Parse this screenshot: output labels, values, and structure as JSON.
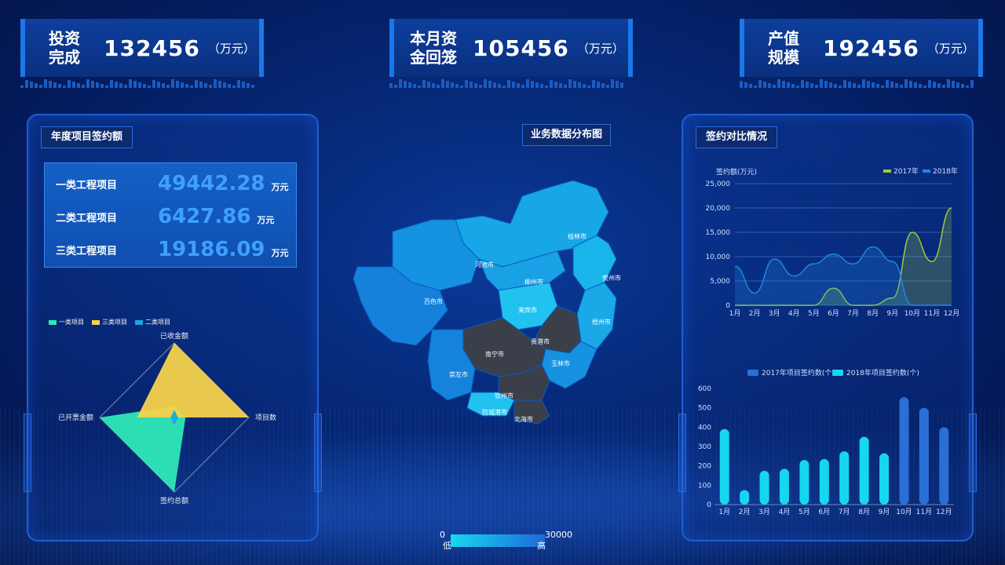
{
  "kpis": [
    {
      "label": "投资完成",
      "label_l1": "投资",
      "label_l2": "完成",
      "value": "132456",
      "unit": "（万元）"
    },
    {
      "label": "本月资金回笼",
      "label_l1": "本月资",
      "label_l2": "金回笼",
      "value": "105456",
      "unit": "（万元）"
    },
    {
      "label": "产值规模",
      "label_l1": "产值",
      "label_l2": "规模",
      "value": "192456",
      "unit": "（万元）"
    }
  ],
  "left_panel": {
    "title": "年度项目签约额",
    "projects": [
      {
        "label": "一类工程项目",
        "value": "49442.28",
        "unit": "万元"
      },
      {
        "label": "二类工程项目",
        "value": "6427.86",
        "unit": "万元"
      },
      {
        "label": "三类工程项目",
        "value": "19186.09",
        "unit": "万元"
      }
    ],
    "radar_legend": [
      "一类项目",
      "三类项目",
      "二类项目"
    ],
    "radar_axes": {
      "top": "已收金额",
      "right": "项目数",
      "bottom": "签约总额",
      "left": "已开票金额"
    }
  },
  "map": {
    "title": "业务数据分布图",
    "cities": [
      "桂林市",
      "河池市",
      "贺州市",
      "柳州市",
      "百色市",
      "来宾市",
      "梧州市",
      "贵港市",
      "南宁市",
      "玉林市",
      "崇左市",
      "钦州市",
      "防城港市",
      "北海市"
    ],
    "scale_min": "0",
    "scale_max": "30000",
    "scale_low": "低",
    "scale_high": "高"
  },
  "right_panel": {
    "title": "签约对比情况",
    "line_chart_ylabel": "签约额(万元)"
  },
  "colors": {
    "accent": "#1b78e8",
    "map_dark": "#3a3f4a",
    "line_2017": "#9ccc3c",
    "line_2018": "#1e88e5",
    "bar_2017": "#2a6fd6",
    "bar_2018": "#17d6f0"
  },
  "chart_data": [
    {
      "type": "line",
      "categories": [
        "1月",
        "2月",
        "3月",
        "4月",
        "5月",
        "6月",
        "7月",
        "8月",
        "9月",
        "10月",
        "11月",
        "12月"
      ],
      "ylim": [
        0,
        25000
      ],
      "yticks": [
        "0",
        "5,000",
        "10,000",
        "15,000",
        "20,000",
        "25,000"
      ],
      "ylabel": "签约额(万元)",
      "series": [
        {
          "name": "2017年",
          "values": [
            0,
            0,
            0,
            0,
            0,
            3500,
            0,
            0,
            1500,
            15000,
            9000,
            20000
          ]
        },
        {
          "name": "2018年",
          "values": [
            8000,
            2500,
            9500,
            6000,
            8500,
            10500,
            8500,
            12000,
            9000,
            0,
            0,
            0
          ]
        }
      ]
    },
    {
      "type": "bar",
      "categories": [
        "1月",
        "2月",
        "3月",
        "4月",
        "5月",
        "6月",
        "7月",
        "8月",
        "9月",
        "10月",
        "11月",
        "12月"
      ],
      "ylim": [
        0,
        600
      ],
      "yticks": [
        "0",
        "100",
        "200",
        "300",
        "400",
        "500",
        "600"
      ],
      "series": [
        {
          "name": "2017年项目签约数(个)",
          "values": [
            0,
            0,
            0,
            0,
            0,
            0,
            0,
            0,
            0,
            555,
            500,
            400
          ]
        },
        {
          "name": "2018年项目签约数(个)",
          "values": [
            390,
            75,
            175,
            185,
            230,
            235,
            275,
            350,
            265,
            0,
            0,
            0
          ]
        }
      ]
    },
    {
      "type": "radar",
      "axes": [
        "已收金额",
        "项目数",
        "签约总额",
        "已开票金额"
      ],
      "series": [
        {
          "name": "一类项目",
          "values": [
            0.15,
            0.15,
            1.0,
            1.0
          ]
        },
        {
          "name": "三类项目",
          "values": [
            1.0,
            1.0,
            0.0,
            0.5
          ]
        },
        {
          "name": "二类项目",
          "values": [
            0.1,
            0.05,
            0.1,
            0.05
          ]
        }
      ]
    }
  ]
}
